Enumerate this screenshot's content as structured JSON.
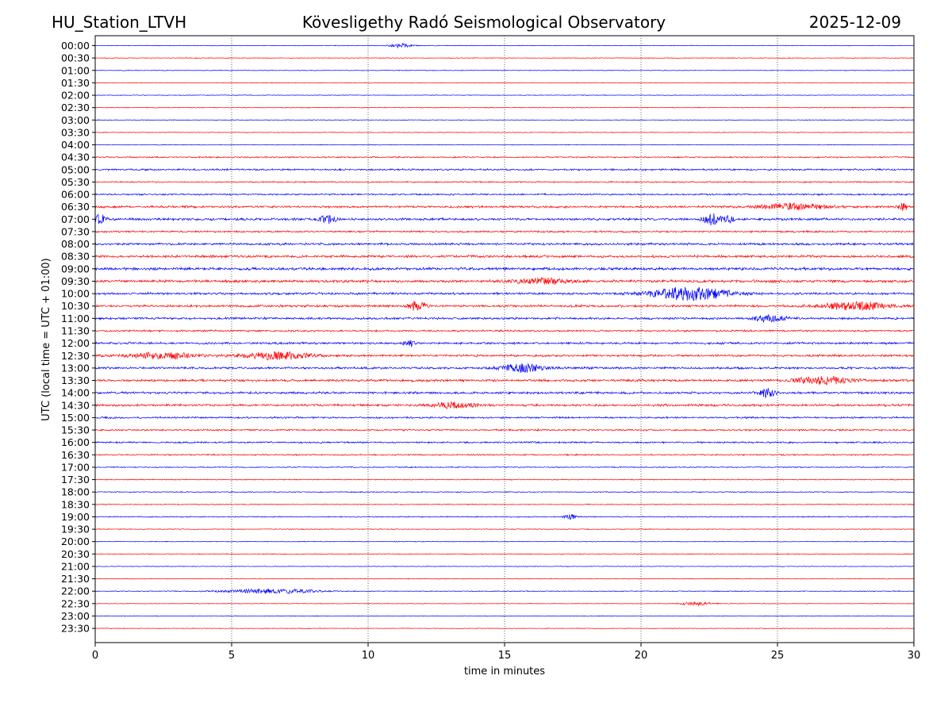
{
  "chart_data": {
    "type": "line",
    "station_label": "HU_Station_LTVH",
    "title": "Kövesligethy Radó Seismological Observatory",
    "date": "2025-12-09",
    "xlabel": "time in minutes",
    "ylabel": "UTC (local time = UTC + 01:00)",
    "xlim": [
      0,
      30
    ],
    "xticks": [
      0,
      5,
      10,
      15,
      20,
      25,
      30
    ],
    "grid": "vertical dotted at each x tick",
    "trace_colors": [
      "#0000ff",
      "#ff0000"
    ],
    "row_labels": [
      "00:00",
      "00:30",
      "01:00",
      "01:30",
      "02:00",
      "02:30",
      "03:00",
      "03:30",
      "04:00",
      "04:30",
      "05:00",
      "05:30",
      "06:00",
      "06:30",
      "07:00",
      "07:30",
      "08:00",
      "08:30",
      "09:00",
      "09:30",
      "10:00",
      "10:30",
      "11:00",
      "11:30",
      "12:00",
      "12:30",
      "13:00",
      "13:30",
      "14:00",
      "14:30",
      "15:00",
      "15:30",
      "16:00",
      "16:30",
      "17:00",
      "17:30",
      "18:00",
      "18:30",
      "19:00",
      "19:30",
      "20:00",
      "20:30",
      "21:00",
      "21:30",
      "22:00",
      "22:30",
      "23:00",
      "23:30"
    ],
    "noise_levels": [
      0.5,
      0.5,
      0.5,
      0.5,
      0.5,
      0.6,
      0.5,
      0.5,
      0.5,
      1.0,
      1.3,
      1.0,
      1.2,
      1.6,
      1.7,
      1.3,
      1.7,
      1.8,
      2.0,
      2.0,
      1.7,
      1.7,
      1.6,
      1.3,
      1.6,
      1.6,
      1.6,
      1.7,
      1.7,
      1.6,
      1.3,
      1.2,
      1.2,
      1.0,
      0.8,
      0.7,
      0.7,
      0.7,
      0.8,
      0.6,
      0.5,
      0.6,
      0.5,
      0.5,
      0.6,
      0.5,
      0.5,
      0.5
    ],
    "bursts": [
      {
        "row": 0,
        "t": 11.2,
        "amp": 2.5,
        "dur": 0.4
      },
      {
        "row": 13,
        "t": 25.5,
        "amp": 4.0,
        "dur": 1.2
      },
      {
        "row": 13,
        "t": 29.6,
        "amp": 5.0,
        "dur": 0.15
      },
      {
        "row": 14,
        "t": 0.2,
        "amp": 6.0,
        "dur": 0.2
      },
      {
        "row": 14,
        "t": 8.5,
        "amp": 5.0,
        "dur": 0.3
      },
      {
        "row": 14,
        "t": 22.6,
        "amp": 7.0,
        "dur": 0.3
      },
      {
        "row": 14,
        "t": 23.2,
        "amp": 5.0,
        "dur": 0.2
      },
      {
        "row": 19,
        "t": 16.3,
        "amp": 3.5,
        "dur": 1.0
      },
      {
        "row": 20,
        "t": 21.8,
        "amp": 8.0,
        "dur": 1.4
      },
      {
        "row": 21,
        "t": 11.8,
        "amp": 6.0,
        "dur": 0.3
      },
      {
        "row": 21,
        "t": 27.8,
        "amp": 5.0,
        "dur": 1.2
      },
      {
        "row": 22,
        "t": 24.7,
        "amp": 4.0,
        "dur": 0.6
      },
      {
        "row": 24,
        "t": 11.5,
        "amp": 4.0,
        "dur": 0.2
      },
      {
        "row": 25,
        "t": 6.6,
        "amp": 5.0,
        "dur": 1.2
      },
      {
        "row": 25,
        "t": 2.5,
        "amp": 4.0,
        "dur": 1.2
      },
      {
        "row": 26,
        "t": 15.7,
        "amp": 5.0,
        "dur": 0.8
      },
      {
        "row": 27,
        "t": 26.7,
        "amp": 5.0,
        "dur": 1.0
      },
      {
        "row": 28,
        "t": 24.6,
        "amp": 5.0,
        "dur": 0.3
      },
      {
        "row": 29,
        "t": 13.2,
        "amp": 3.5,
        "dur": 0.8
      },
      {
        "row": 38,
        "t": 17.4,
        "amp": 3.5,
        "dur": 0.2
      },
      {
        "row": 44,
        "t": 6.5,
        "amp": 3.0,
        "dur": 1.6
      },
      {
        "row": 45,
        "t": 22.0,
        "amp": 2.0,
        "dur": 0.6
      }
    ]
  }
}
